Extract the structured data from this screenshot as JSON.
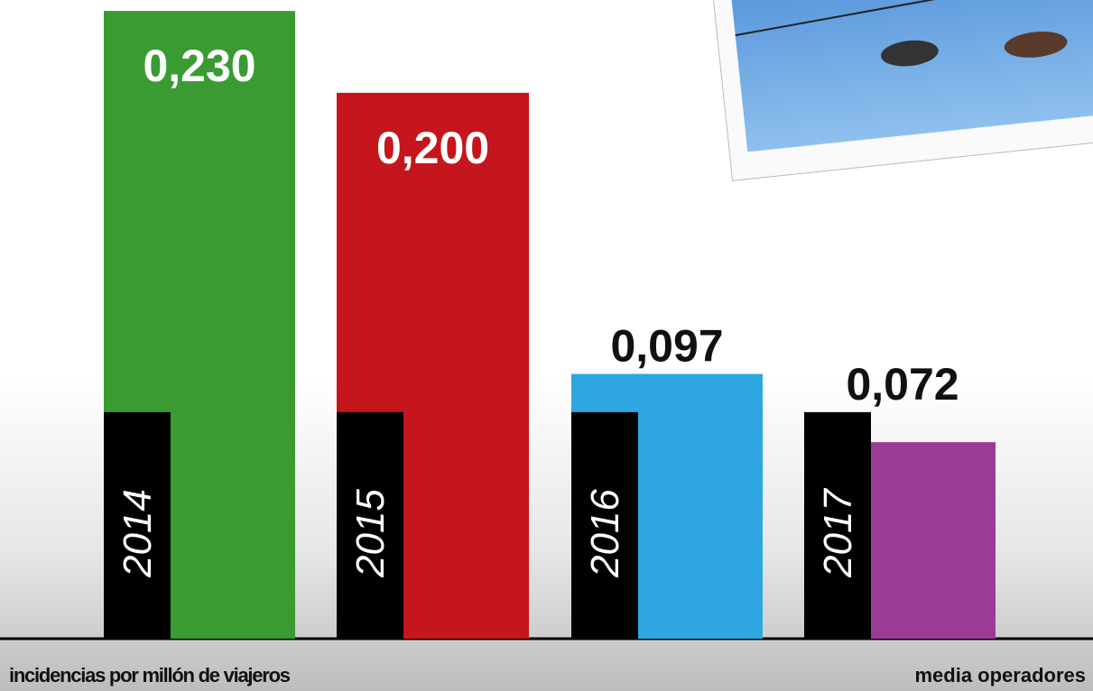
{
  "chart_data": {
    "type": "bar",
    "categories": [
      "2014",
      "2015",
      "2016",
      "2017"
    ],
    "series": [
      {
        "name": "media operadores",
        "color": "#000000",
        "values": [
          0.083,
          0.083,
          0.083,
          0.083
        ]
      },
      {
        "name": "incidencias por millón de viajeros",
        "colors": [
          "#3a9b32",
          "#c4161c",
          "#2ea6e0",
          "#9c3b95"
        ],
        "values": [
          0.23,
          0.2,
          0.097,
          0.072
        ],
        "value_labels": [
          "0,230",
          "0,200",
          "0,097",
          "0,072"
        ]
      }
    ],
    "ylim": [
      0,
      0.234
    ]
  }
}
